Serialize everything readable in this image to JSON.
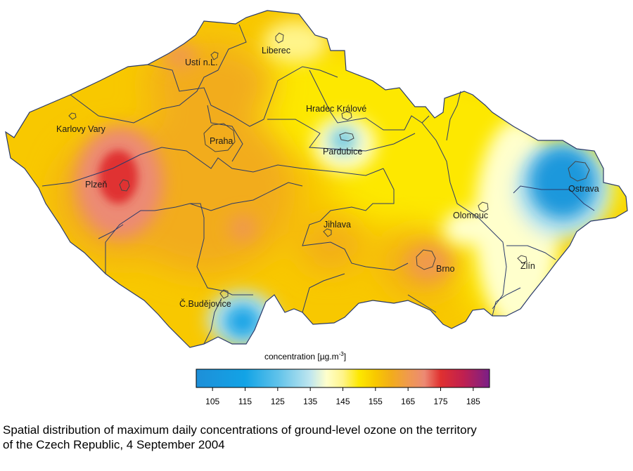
{
  "legend": {
    "title": "concentration [µg.m",
    "title_sup": "-3",
    "title_end": "]",
    "ticks": [
      "105",
      "115",
      "125",
      "135",
      "145",
      "155",
      "165",
      "175",
      "185"
    ],
    "range": [
      100,
      190
    ],
    "colors": [
      {
        "v": 100,
        "c": "#1e8fd8"
      },
      {
        "v": 115,
        "c": "#12a3e6"
      },
      {
        "v": 125,
        "c": "#5fc2ea"
      },
      {
        "v": 135,
        "c": "#bfe6ef"
      },
      {
        "v": 140,
        "c": "#ffffcc"
      },
      {
        "v": 145,
        "c": "#fff48a"
      },
      {
        "v": 150,
        "c": "#fde800"
      },
      {
        "v": 155,
        "c": "#f8c800"
      },
      {
        "v": 160,
        "c": "#f2ac1c"
      },
      {
        "v": 165,
        "c": "#f09a4e"
      },
      {
        "v": 170,
        "c": "#ec8a74"
      },
      {
        "v": 175,
        "c": "#e03030"
      },
      {
        "v": 182,
        "c": "#c02050"
      },
      {
        "v": 190,
        "c": "#7a1f88"
      }
    ]
  },
  "cities": [
    {
      "id": "usti",
      "name": "Ustí n.L."
    },
    {
      "id": "liberec",
      "name": "Liberec"
    },
    {
      "id": "hradec",
      "name": "Hradec Králové"
    },
    {
      "id": "karlovy",
      "name": "Karlovy Vary"
    },
    {
      "id": "praha",
      "name": "Praha"
    },
    {
      "id": "pardubice",
      "name": "Pardubice"
    },
    {
      "id": "plzen",
      "name": "Plzeň"
    },
    {
      "id": "ostrava",
      "name": "Ostrava"
    },
    {
      "id": "olomouc",
      "name": "Olomouc"
    },
    {
      "id": "jihlava",
      "name": "Jihlava"
    },
    {
      "id": "brno",
      "name": "Brno"
    },
    {
      "id": "zlin",
      "name": "Zlín"
    },
    {
      "id": "budejovice",
      "name": "Č.Budějovice"
    }
  ],
  "caption": {
    "line1": "Spatial distribution of maximum daily concentrations of ground-level ozone on the territory",
    "line2": "of the Czech Republic, 4 September 2004"
  }
}
